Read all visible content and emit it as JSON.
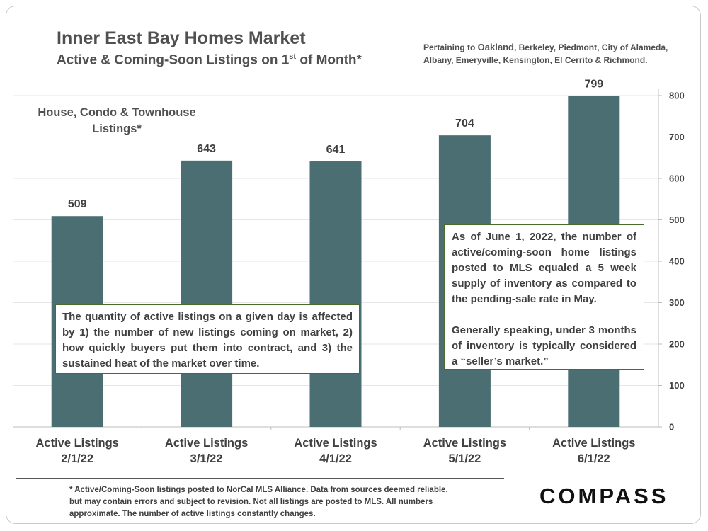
{
  "header": {
    "title": "Inner East Bay Homes Market",
    "subtitle_main": "Active & Coming-Soon Listings on 1",
    "subtitle_sup": "st",
    "subtitle_end": " of Month*",
    "pertaining_prefix": "Pertaining to ",
    "pertaining_city": "Oakland",
    "pertaining_rest": ", Berkeley, Piedmont, City of Alameda, Albany, Emeryville, Kensington, El Cerrito & Richmond."
  },
  "chart_data": {
    "type": "bar",
    "series_label": "House, Condo & Townhouse Listings*",
    "categories": [
      [
        "Active Listings",
        "2/1/22"
      ],
      [
        "Active Listings",
        "3/1/22"
      ],
      [
        "Active Listings",
        "4/1/22"
      ],
      [
        "Active Listings",
        "5/1/22"
      ],
      [
        "Active Listings",
        "6/1/22"
      ]
    ],
    "values": [
      509,
      643,
      641,
      704,
      799
    ],
    "ylim": [
      0,
      800
    ],
    "yticks": [
      0,
      100,
      200,
      300,
      400,
      500,
      600,
      700,
      800
    ],
    "y_axis_side": "right",
    "bar_color": "#4a6e72",
    "grid": true
  },
  "annotations": {
    "left_note": "The quantity of active listings on a given day is affected by 1) the number of new listings coming on market, 2) how quickly buyers put them into contract, and 3) the sustained heat of the market over time.",
    "right_note_p1": "As of June 1, 2022, the number of active/coming-soon home listings posted to MLS equaled a 5 week supply of inventory as compared to the pending-sale rate in May.",
    "right_note_p2": "Generally speaking, under 3 months of inventory is typically considered a “seller’s market.”"
  },
  "footnote": "* Active/Coming-Soon listings posted to NorCal MLS Alliance.  Data from sources deemed reliable, but may contain errors and subject to revision.  Not all listings are posted to MLS. All numbers approximate. The number of active listings constantly changes.",
  "brand": "COMPASS"
}
